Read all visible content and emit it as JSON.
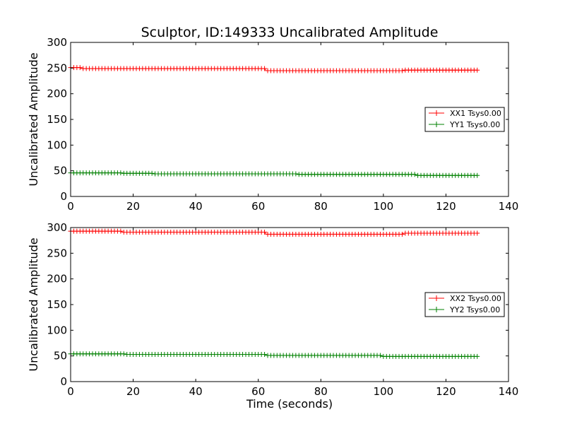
{
  "chart_data": [
    {
      "type": "line",
      "title": "Sculptor, ID:149333 Uncalibrated Amplitude",
      "xlabel": "",
      "ylabel": "Uncalibrated Amplitude",
      "xlim": [
        0,
        140
      ],
      "ylim": [
        0,
        300
      ],
      "xticks": [
        "0",
        "20",
        "40",
        "60",
        "80",
        "100",
        "120",
        "140"
      ],
      "yticks": [
        "0",
        "50",
        "100",
        "150",
        "200",
        "250",
        "300"
      ],
      "legend_position": "center-right",
      "x_end": 130,
      "series": [
        {
          "name": "XX1 Tsys0.00",
          "color": "#ff0000",
          "segments": [
            [
              0,
              3,
              251
            ],
            [
              3,
              62,
              249
            ],
            [
              62,
              106,
              245
            ],
            [
              106,
              130,
              246
            ]
          ]
        },
        {
          "name": "YY1 Tsys0.00",
          "color": "#008000",
          "segments": [
            [
              0,
              16,
              46
            ],
            [
              16,
              26,
              45
            ],
            [
              26,
              72,
              44
            ],
            [
              72,
              110,
              43
            ],
            [
              110,
              130,
              41
            ]
          ]
        }
      ]
    },
    {
      "type": "line",
      "title": "",
      "xlabel": "Time (seconds)",
      "ylabel": "Uncalibrated Amplitude",
      "xlim": [
        0,
        140
      ],
      "ylim": [
        0,
        300
      ],
      "xticks": [
        "0",
        "20",
        "40",
        "60",
        "80",
        "100",
        "120",
        "140"
      ],
      "yticks": [
        "0",
        "50",
        "100",
        "150",
        "200",
        "250",
        "300"
      ],
      "legend_position": "center-right",
      "x_end": 130,
      "series": [
        {
          "name": "XX2 Tsys0.00",
          "color": "#ff0000",
          "segments": [
            [
              0,
              16,
              293
            ],
            [
              16,
              62,
              291
            ],
            [
              62,
              106,
              287
            ],
            [
              106,
              130,
              289
            ]
          ]
        },
        {
          "name": "YY2 Tsys0.00",
          "color": "#008000",
          "segments": [
            [
              0,
              17,
              54
            ],
            [
              17,
              62,
              53
            ],
            [
              62,
              99,
              51
            ],
            [
              99,
              130,
              49
            ]
          ]
        }
      ]
    }
  ]
}
